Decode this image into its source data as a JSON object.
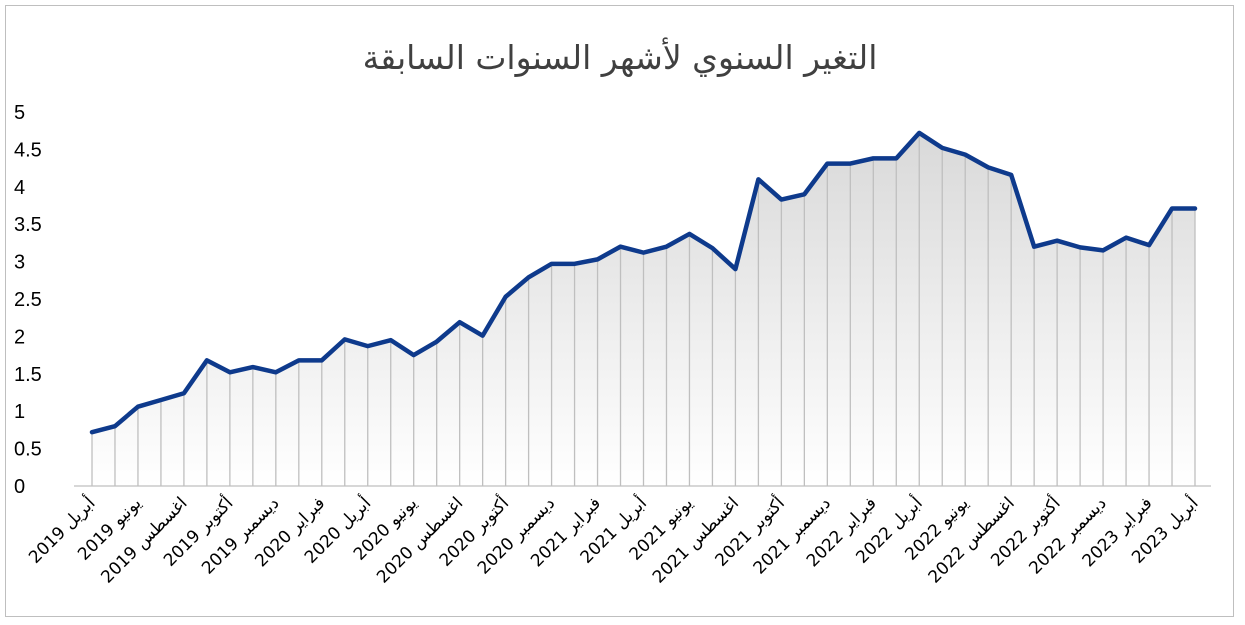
{
  "chart_data": {
    "type": "area",
    "title": "التغير السنوي لأشهر السنوات السابقة",
    "xlabel": "",
    "ylabel": "",
    "ylim": [
      0,
      5
    ],
    "yticks": [
      "0",
      "0.5",
      "1",
      "1.5",
      "2",
      "2.5",
      "3",
      "3.5",
      "4",
      "4.5",
      "5"
    ],
    "grid": false,
    "legend": "none",
    "colors": {
      "line": "#0e3a8c",
      "area_top": "#d9d9d9",
      "area_bottom": "#ffffff",
      "droplines": "#bfbfbf"
    },
    "x": [
      "2019-04",
      "2019-05",
      "2019-06",
      "2019-07",
      "2019-08",
      "2019-09",
      "2019-10",
      "2019-11",
      "2019-12",
      "2020-01",
      "2020-02",
      "2020-03",
      "2020-04",
      "2020-05",
      "2020-06",
      "2020-07",
      "2020-08",
      "2020-09",
      "2020-10",
      "2020-11",
      "2020-12",
      "2021-01",
      "2021-02",
      "2021-03",
      "2021-04",
      "2021-05",
      "2021-06",
      "2021-07",
      "2021-08",
      "2021-09",
      "2021-10",
      "2021-11",
      "2021-12",
      "2022-01",
      "2022-02",
      "2022-03",
      "2022-04",
      "2022-05",
      "2022-06",
      "2022-07",
      "2022-08",
      "2022-09",
      "2022-10",
      "2022-11",
      "2022-12",
      "2023-01",
      "2023-02",
      "2023-03",
      "2023-04"
    ],
    "tick_labels": [
      "أبريل 2019",
      "يونيو 2019",
      "اغسطس 2019",
      "أكتوبر 2019",
      "ديسمبر 2019",
      "فبراير 2020",
      "أبريل 2020",
      "يونيو 2020",
      "اغسطس 2020",
      "أكتوبر 2020",
      "ديسمبر 2020",
      "فبراير 2021",
      "أبريل 2021",
      "يونيو 2021",
      "اغسطس 2021",
      "أكتوبر 2021",
      "ديسمبر 2021",
      "فبراير 2022",
      "أبريل 2022",
      "يونيو 2022",
      "اغسطس 2022",
      "أكتوبر 2022",
      "ديسمبر 2022",
      "فبراير 2023",
      "أبريل 2023"
    ],
    "tick_every": 2,
    "series": [
      {
        "values": [
          0.72,
          0.8,
          1.06,
          1.15,
          1.24,
          1.68,
          1.52,
          1.59,
          1.52,
          1.68,
          1.68,
          1.96,
          1.87,
          1.95,
          1.75,
          1.93,
          2.19,
          2.01,
          2.53,
          2.79,
          2.97,
          2.97,
          3.03,
          3.2,
          3.12,
          3.2,
          3.37,
          3.18,
          2.9,
          4.1,
          3.83,
          3.9,
          4.31,
          4.31,
          4.38,
          4.38,
          4.72,
          4.52,
          4.43,
          4.26,
          4.16,
          3.2,
          3.28,
          3.19,
          3.15,
          3.32,
          3.22,
          3.71,
          3.71
        ]
      }
    ]
  }
}
